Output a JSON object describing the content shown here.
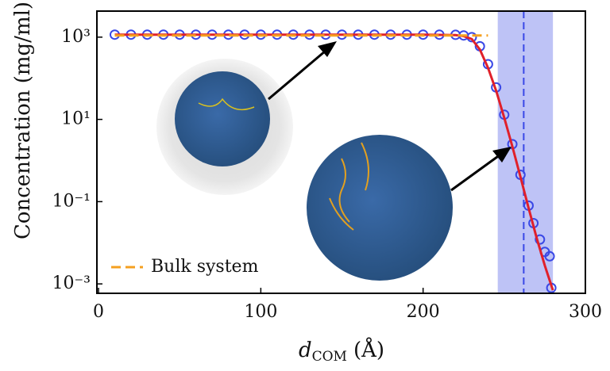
{
  "chart_data": {
    "type": "line",
    "xlabel": {
      "symbol": "d",
      "subscript": "COM",
      "unit": "(Å)"
    },
    "ylabel": "Concentration (mg/ml)",
    "xlim": [
      -1,
      300
    ],
    "xticks": [
      0,
      100,
      200,
      300
    ],
    "ylim": [
      0.00059,
      4300
    ],
    "log_y": true,
    "yticks": [
      {
        "value": 0.001,
        "label": "10⁻³"
      },
      {
        "value": 0.1,
        "label": "10⁻¹"
      },
      {
        "value": 10,
        "label": "10¹"
      },
      {
        "value": 1000,
        "label": "10³"
      }
    ],
    "legend": "lower left",
    "band": {
      "x": [
        246,
        280
      ],
      "color": "#b3b8f5"
    },
    "vline": {
      "x": 262,
      "color": "#3a48e6"
    },
    "series": [
      {
        "style": "markers",
        "color": "#3a48e6",
        "x": [
          10,
          20,
          30,
          40,
          50,
          60,
          70,
          80,
          90,
          100,
          110,
          120,
          130,
          140,
          150,
          160,
          170,
          180,
          190,
          200,
          210,
          220,
          225,
          230,
          235,
          240,
          245,
          250,
          255,
          260,
          265,
          268,
          272,
          275,
          278,
          279
        ],
        "values": [
          1150,
          1150,
          1150,
          1150,
          1150,
          1150,
          1150,
          1150,
          1150,
          1150,
          1150,
          1150,
          1150,
          1150,
          1150,
          1150,
          1150,
          1150,
          1150,
          1150,
          1150,
          1140,
          1100,
          1000,
          600,
          220,
          60,
          13,
          2.5,
          0.45,
          0.08,
          0.03,
          0.012,
          0.006,
          0.0047,
          0.0008
        ]
      },
      {
        "style": "line",
        "color": "#e0202a",
        "x": [
          10,
          100,
          200,
          220,
          225,
          230,
          235,
          240,
          245,
          250,
          255,
          260,
          265,
          270,
          275,
          280
        ],
        "values": [
          1150,
          1150,
          1150,
          1120,
          1060,
          900,
          500,
          180,
          50,
          11,
          2.2,
          0.4,
          0.07,
          0.013,
          0.0028,
          0.0007
        ]
      },
      {
        "style": "dashed",
        "name": "Bulk system",
        "color": "#f5a020",
        "x": [
          10,
          240
        ],
        "values": [
          1100,
          1100
        ]
      }
    ]
  }
}
